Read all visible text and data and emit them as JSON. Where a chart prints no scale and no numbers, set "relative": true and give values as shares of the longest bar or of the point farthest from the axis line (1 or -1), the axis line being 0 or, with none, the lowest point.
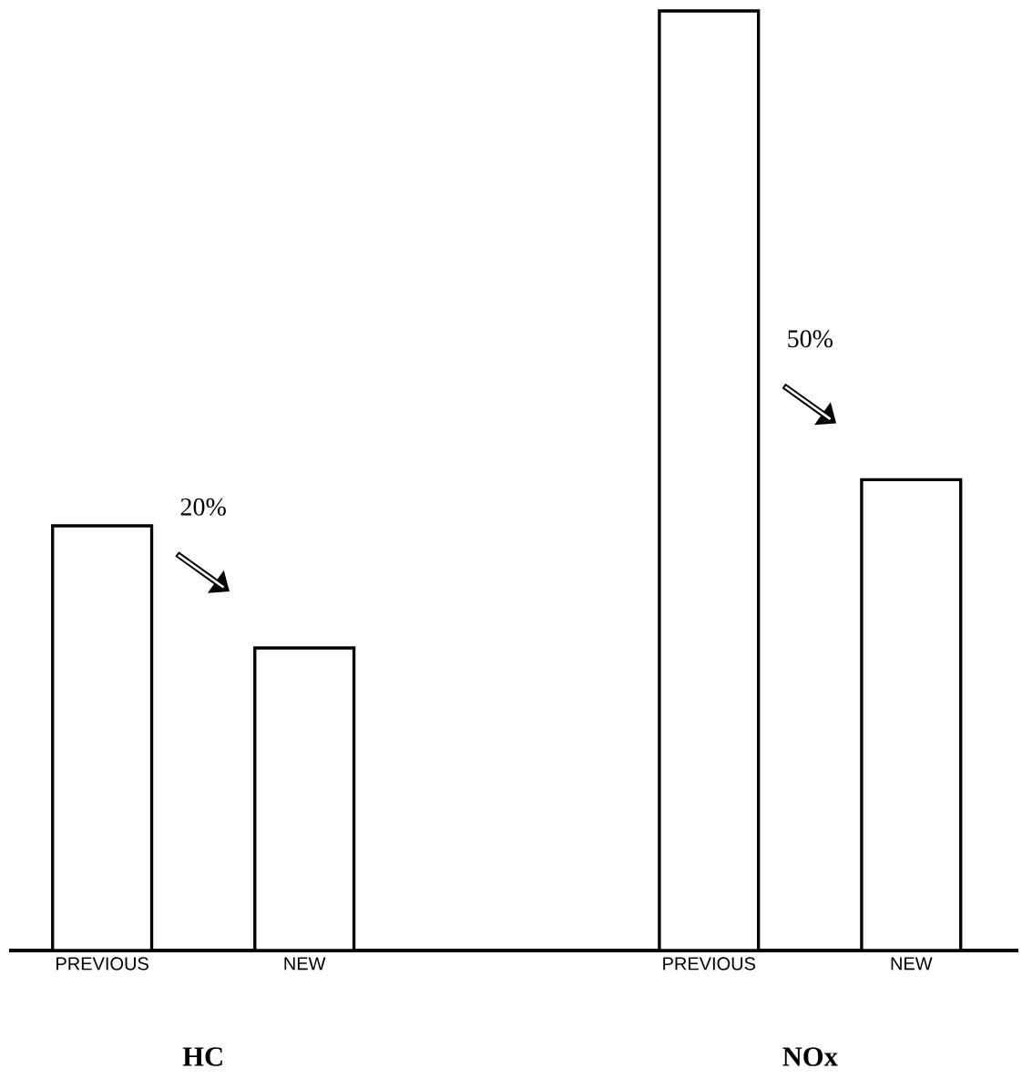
{
  "chart_data": {
    "type": "bar",
    "relative": true,
    "categories": [
      "PREVIOUS",
      "NEW",
      null,
      "PREVIOUS",
      "NEW"
    ],
    "values": [
      0.452,
      0.322,
      null,
      1.0,
      0.501
    ],
    "color": "#ffffff",
    "annotations": [
      "20%",
      "50%",
      "HC",
      "NOx"
    ]
  }
}
